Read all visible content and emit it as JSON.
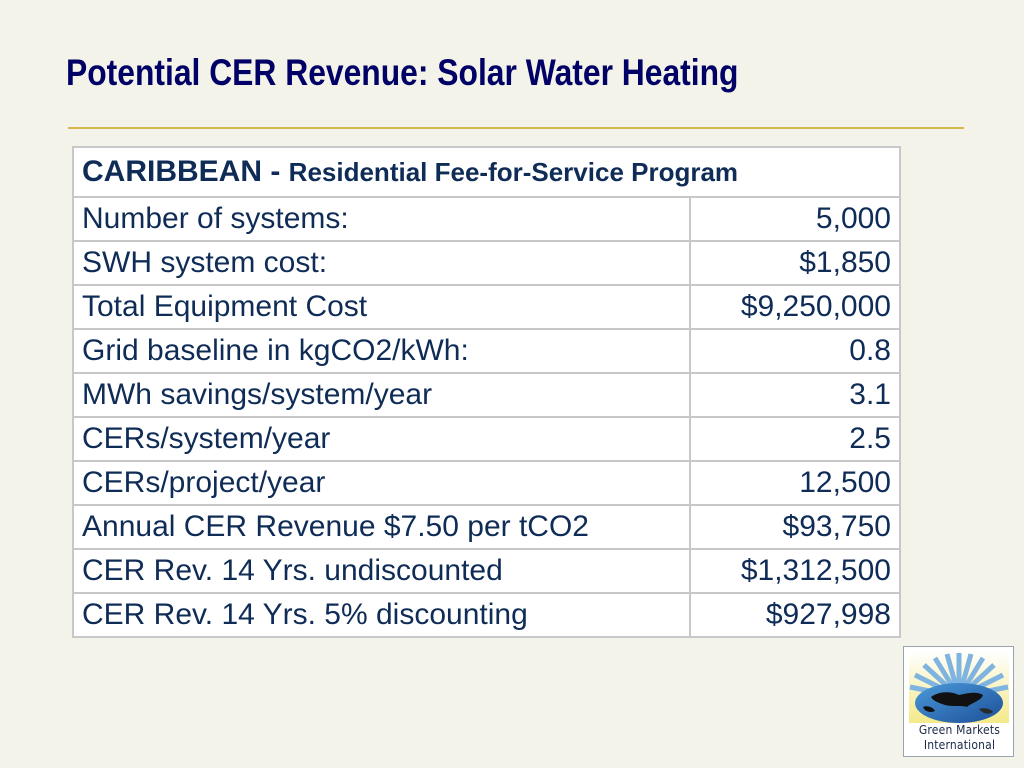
{
  "slide": {
    "title": "Potential CER Revenue: Solar Water Heating"
  },
  "table": {
    "header_bold": "CARIBBEAN -",
    "header_sub": "Residential Fee-for-Service Program",
    "rows": [
      {
        "label": "Number of systems:",
        "value": "5,000"
      },
      {
        "label": "SWH system cost:",
        "value": "$1,850"
      },
      {
        "label": "Total Equipment Cost",
        "value": "$9,250,000"
      },
      {
        "label": "Grid baseline in kgCO2/kWh:",
        "value": "0.8"
      },
      {
        "label": "MWh savings/system/year",
        "value": "3.1"
      },
      {
        "label": "CERs/system/year",
        "value": "2.5"
      },
      {
        "label": "CERs/project/year",
        "value": "12,500"
      },
      {
        "label": "Annual CER Revenue $7.50 per tCO2",
        "value": "$93,750"
      },
      {
        "label": "CER Rev. 14 Yrs. undiscounted",
        "value": "$1,312,500"
      },
      {
        "label": "CER Rev. 14 Yrs. 5% discounting",
        "value": "$927,998"
      }
    ]
  },
  "logo": {
    "line1": "Green Markets",
    "line2": "International",
    "icon": "sun-globe-icon"
  },
  "colors": {
    "background": "#f3f3e9",
    "title": "#000066",
    "rule": "#d4b84c",
    "table_text": "#0f2c57"
  }
}
